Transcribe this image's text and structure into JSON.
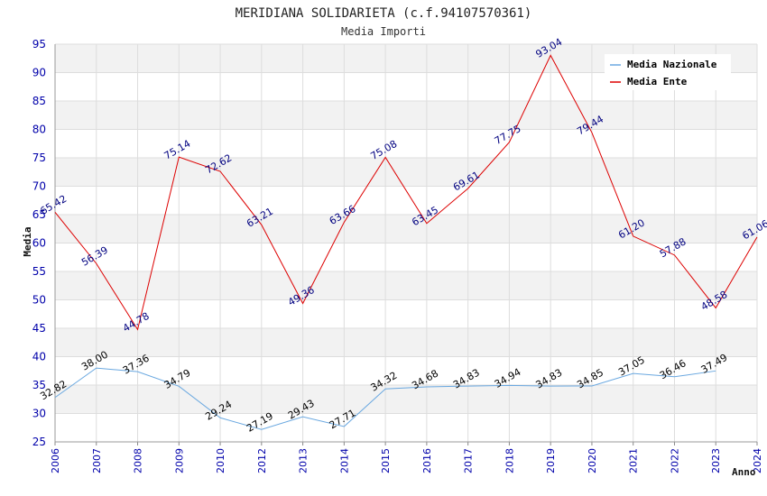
{
  "chart_data": {
    "type": "line",
    "title": "MERIDIANA SOLIDARIETA (c.f.94107570361)",
    "subtitle": "Media Importi",
    "ylabel": "Media",
    "xlabel": "Anno",
    "ylim": [
      25,
      95
    ],
    "yticks": [
      25,
      30,
      35,
      40,
      45,
      50,
      55,
      60,
      65,
      70,
      75,
      80,
      85,
      90,
      95
    ],
    "categories": [
      "2006",
      "2007",
      "2008",
      "2009",
      "2010",
      "2012",
      "2013",
      "2014",
      "2015",
      "2016",
      "2017",
      "2018",
      "2019",
      "2020",
      "2021",
      "2022",
      "2023",
      "2024"
    ],
    "series": [
      {
        "name": "Media Nazionale",
        "color": "#6aa8e0",
        "label_color": "#000000",
        "values": [
          32.82,
          38.0,
          37.36,
          34.79,
          29.24,
          27.19,
          29.43,
          27.71,
          34.32,
          34.68,
          34.83,
          34.94,
          34.83,
          34.85,
          37.05,
          36.46,
          37.49,
          null
        ],
        "labels": [
          "32.82",
          "38.00",
          "37.36",
          "34.79",
          "29.24",
          "27.19",
          "29.43",
          "27.71",
          "34.32",
          "34.68",
          "34.83",
          "34.94",
          "34.83",
          "34.85",
          "37.05",
          "36.46",
          "37.49",
          ""
        ]
      },
      {
        "name": "Media Ente",
        "color": "#dd0000",
        "label_color": "#000080",
        "values": [
          65.42,
          56.39,
          44.78,
          75.14,
          72.62,
          63.21,
          49.36,
          63.66,
          75.08,
          63.45,
          69.61,
          77.75,
          93.04,
          79.44,
          61.2,
          57.88,
          48.58,
          61.06
        ],
        "labels": [
          "65.42",
          "56.39",
          "44.78",
          "75.14",
          "72.62",
          "63.21",
          "49.36",
          "63.66",
          "75.08",
          "63.45",
          "69.61",
          "77.75",
          "93.04",
          "79.44",
          "61.20",
          "57.88",
          "48.58",
          "61.06"
        ]
      }
    ],
    "legend_position": "top-right",
    "grid": true,
    "band_color": "#f2f2f2",
    "grid_color": "#dddddd"
  }
}
